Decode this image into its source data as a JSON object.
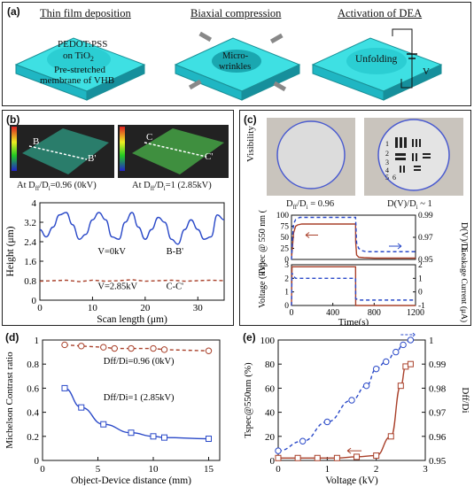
{
  "panel_a": {
    "label": "(a)",
    "titles": [
      "Thin film deposition",
      "Biaxial compression",
      "Activation of DEA"
    ],
    "pedot_line1": "PEDOT:PSS",
    "pedot_line2_main": "on TiO",
    "pedot_line2_sub": "2",
    "membrane_line1": "Pre-stretched",
    "membrane_line2": "membrane of VHB",
    "micro_line1": "Micro-",
    "micro_line2": "wrinkles",
    "unfolding": "Unfolding",
    "voltage_symbol": "V"
  },
  "panel_b": {
    "label": "(b)",
    "img1_caption": "At D",
    "img1_caption_sub1": "ff",
    "img1_caption_mid": "/D",
    "img1_caption_sub2": "i",
    "img1_caption_end": "=0.96 (0kV)",
    "img2_caption": "At D",
    "img2_caption_sub1": "ff",
    "img2_caption_mid": "/D",
    "img2_caption_sub2": "i",
    "img2_caption_end": "=1 (2.85kV)",
    "img1_markers": [
      "B",
      "B'"
    ],
    "img2_markers": [
      "C",
      "C'"
    ],
    "colors": {
      "surface1": "#2a7d6b",
      "surface2": "#3f8f3f"
    }
  },
  "panel_c": {
    "label": "(c)",
    "visibility_label": "Visibility",
    "cond1": "D",
    "cond1_sub1": "ff",
    "cond1_mid": "/D",
    "cond1_sub2": "i",
    "cond1_end": " = 0.96",
    "cond2": "D(V)/D",
    "cond2_sub": "i",
    "cond2_end": " ~ 1",
    "chart_numbers": [
      "1",
      "2",
      "3",
      "4",
      "5",
      "6"
    ]
  },
  "panel_d": {
    "label": "(d)"
  },
  "panel_e": {
    "label": "(e)"
  },
  "chart_data": [
    {
      "id": "b",
      "type": "line",
      "xlabel": "Scan length (μm)",
      "ylabel": "Height (μm)",
      "xlim": [
        0,
        35
      ],
      "ylim": [
        0,
        4
      ],
      "xticks": [
        0,
        10,
        20,
        30
      ],
      "yticks": [
        0,
        0.8,
        1.6,
        2.4,
        3.2,
        4
      ],
      "ytick_labels": [
        "0",
        "0.8",
        "1.6",
        "2.4",
        "3.2",
        "4"
      ],
      "annotations": [
        "V=0kV",
        "B-B'",
        "V=2.85kV",
        "C-C'"
      ],
      "series": [
        {
          "color": "#2a49c8",
          "style": "solid",
          "x": [
            0,
            1.2,
            2.5,
            3.7,
            5,
            6.2,
            7.5,
            8.7,
            10,
            11.2,
            12.5,
            13.7,
            15,
            16.2,
            17.5,
            18.7,
            20,
            21.2,
            22.5,
            23.7,
            25,
            26.2,
            27.5,
            28.7,
            30,
            31.2,
            32.5,
            33.7,
            35
          ],
          "y": [
            2.9,
            2.6,
            3.0,
            3.5,
            3.6,
            3.1,
            2.5,
            2.7,
            3.3,
            3.6,
            3.3,
            2.6,
            2.5,
            3.2,
            3.6,
            3.0,
            2.5,
            2.9,
            3.4,
            3.2,
            2.5,
            2.3,
            2.9,
            3.3,
            2.9,
            2.5,
            2.6,
            3.5,
            3.3
          ]
        },
        {
          "color": "#a9402a",
          "style": "dashed",
          "x": [
            0,
            2.5,
            5,
            7.5,
            10,
            12.5,
            15,
            17.5,
            20,
            22.5,
            25,
            27.5,
            30,
            32.5,
            35
          ],
          "y": [
            0.78,
            0.8,
            0.82,
            0.76,
            0.82,
            0.78,
            0.8,
            0.84,
            0.78,
            0.8,
            0.82,
            0.78,
            0.8,
            0.82,
            0.8
          ]
        }
      ]
    },
    {
      "id": "c_top",
      "type": "line",
      "ylabel_left": "Tspec @ 550 nm (%)",
      "ylabel_right": "D(V)/Di",
      "xlim": [
        0,
        1200
      ],
      "ylim_left": [
        0,
        100
      ],
      "ylim_right": [
        0.95,
        0.99
      ],
      "yticks_left": [
        0,
        25,
        50,
        75,
        100
      ],
      "yticks_right": [
        "0.95",
        "0.97",
        "0.99"
      ],
      "series": [
        {
          "axis": "left",
          "color": "#a9402a",
          "style": "solid",
          "x": [
            0,
            10,
            20,
            40,
            60,
            100,
            620,
            621,
            630,
            650,
            700,
            800,
            1200
          ],
          "y": [
            3,
            30,
            60,
            75,
            78,
            80,
            80,
            40,
            10,
            5,
            4,
            3,
            3
          ]
        },
        {
          "axis": "right",
          "color": "#2a49c8",
          "style": "dashed",
          "x": [
            0,
            10,
            20,
            40,
            80,
            150,
            620,
            630,
            650,
            680,
            720,
            800,
            1000,
            1200
          ],
          "y": [
            0.95,
            0.97,
            0.982,
            0.986,
            0.988,
            0.988,
            0.988,
            0.965,
            0.96,
            0.958,
            0.957,
            0.957,
            0.957,
            0.957
          ]
        }
      ]
    },
    {
      "id": "c_bottom",
      "type": "line",
      "xlabel": "Time(s)",
      "ylabel_left": "Voltage (kV)",
      "ylabel_right": "Leakage Current (μA)",
      "xlim": [
        0,
        1200
      ],
      "ylim_left": [
        0,
        3
      ],
      "ylim_right": [
        -1,
        2
      ],
      "xticks": [
        0,
        400,
        800,
        1200
      ],
      "yticks_left": [
        0,
        1,
        2,
        3
      ],
      "yticks_right": [
        -1,
        0,
        1,
        2
      ],
      "series": [
        {
          "axis": "left",
          "color": "#a9402a",
          "style": "solid",
          "x": [
            0,
            5,
            10,
            620,
            621,
            1200
          ],
          "y": [
            0,
            2.85,
            2.85,
            2.85,
            0,
            0
          ]
        },
        {
          "axis": "right",
          "color": "#2a49c8",
          "style": "dashed",
          "x": [
            0,
            5,
            15,
            40,
            620,
            621,
            650,
            1200
          ],
          "y": [
            -1,
            1.4,
            1.2,
            1.0,
            1.0,
            -0.5,
            -0.6,
            -0.6
          ]
        }
      ]
    },
    {
      "id": "d",
      "type": "scatter",
      "xlabel": "Object-Device distance (mm)",
      "ylabel": "Michelson Contrast ratio",
      "xlim": [
        0,
        16
      ],
      "ylim": [
        0,
        1
      ],
      "xticks": [
        0,
        5,
        10,
        15
      ],
      "yticks": [
        "0",
        "0.2",
        "0.4",
        "0.6",
        "0.8",
        "1"
      ],
      "series": [
        {
          "name": "Dff/Di=0.96 (0kV)",
          "color": "#a9402a",
          "marker": "circle",
          "style": "dashed",
          "x": [
            2,
            3.5,
            5.5,
            6.5,
            8,
            10,
            11,
            15
          ],
          "y": [
            0.96,
            0.95,
            0.94,
            0.93,
            0.93,
            0.93,
            0.92,
            0.91
          ]
        },
        {
          "name": "Dff/Di=1 (2.85kV)",
          "color": "#2a49c8",
          "marker": "square",
          "style": "solid",
          "x": [
            2,
            3.5,
            5.5,
            8,
            10,
            11,
            15
          ],
          "y": [
            0.6,
            0.44,
            0.3,
            0.23,
            0.2,
            0.19,
            0.18
          ]
        }
      ]
    },
    {
      "id": "e",
      "type": "scatter",
      "xlabel": "Voltage (kV)",
      "ylabel_left": "Tspec@550nm (%)",
      "ylabel_right": "Dff/Di",
      "xlim": [
        0,
        3
      ],
      "ylim_left": [
        0,
        100
      ],
      "ylim_right": [
        0.95,
        1
      ],
      "xticks": [
        0,
        1,
        2,
        3
      ],
      "yticks_left": [
        0,
        20,
        40,
        60,
        80,
        100
      ],
      "yticks_right": [
        "0.95",
        "0.96",
        "0.97",
        "0.98",
        "0.99",
        "1"
      ],
      "series": [
        {
          "axis": "left",
          "color": "#a9402a",
          "marker": "square",
          "style": "solid",
          "x": [
            0,
            0.4,
            0.8,
            1.2,
            1.6,
            2.0,
            2.3,
            2.5,
            2.6,
            2.7
          ],
          "y": [
            2,
            2,
            2,
            2,
            3,
            4,
            20,
            62,
            78,
            80
          ]
        },
        {
          "axis": "right",
          "color": "#2a49c8",
          "marker": "circle",
          "style": "dashed",
          "x": [
            0,
            0.5,
            1.0,
            1.5,
            1.8,
            2.0,
            2.2,
            2.4,
            2.55,
            2.7
          ],
          "y": [
            0.954,
            0.958,
            0.966,
            0.975,
            0.981,
            0.988,
            0.991,
            0.995,
            0.998,
            1.0
          ]
        }
      ]
    }
  ]
}
